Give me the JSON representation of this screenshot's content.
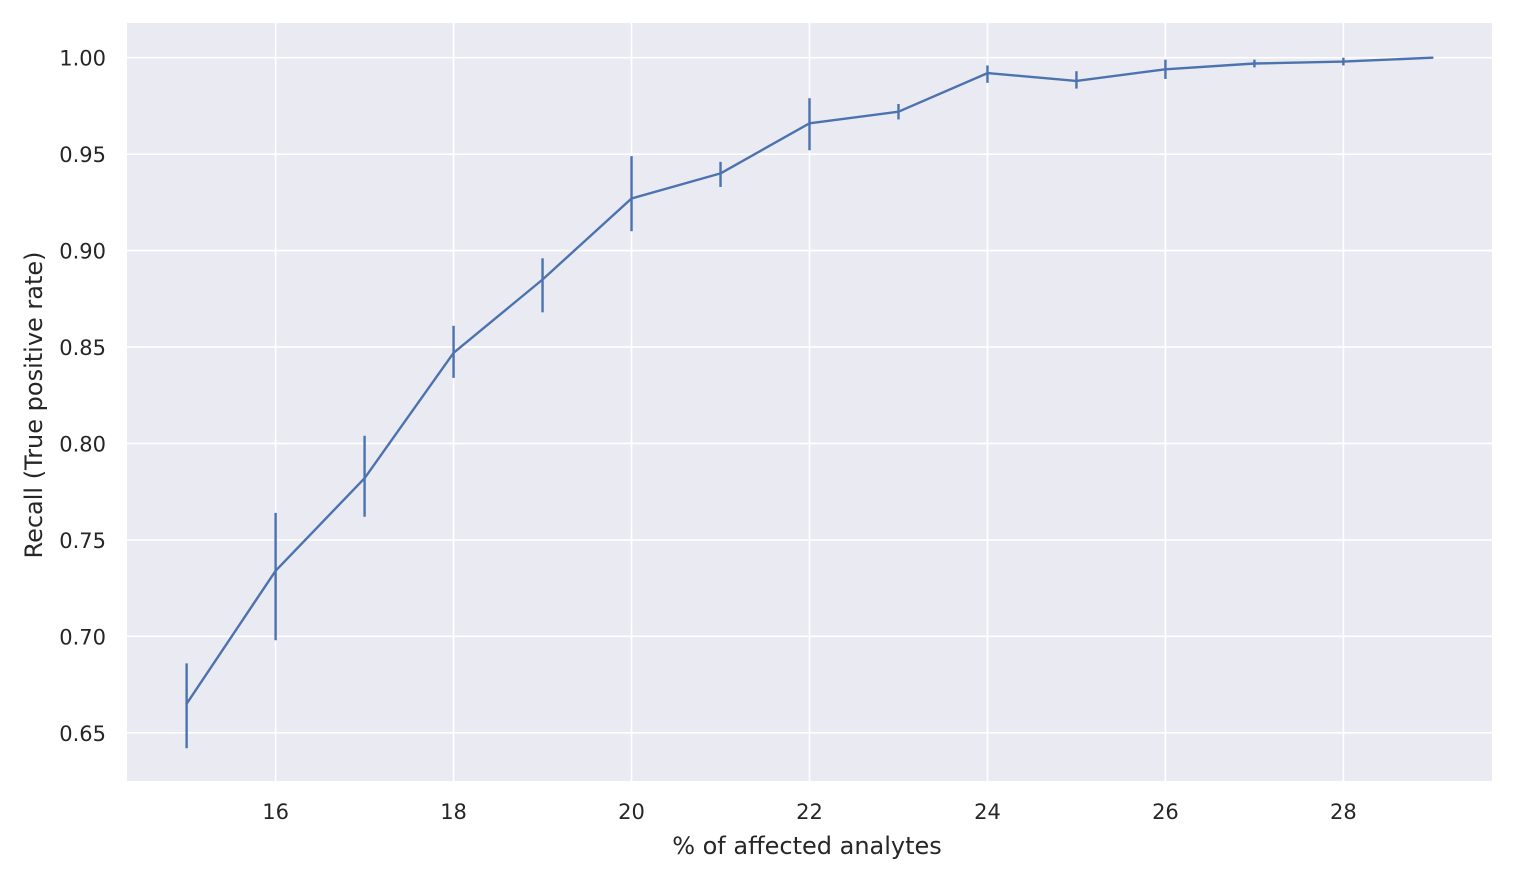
{
  "chart_data": {
    "type": "line",
    "title": "",
    "xlabel": "% of affected analytes",
    "ylabel": "Recall (True positive rate)",
    "xlim": [
      14.33,
      29.67
    ],
    "ylim": [
      0.625,
      1.018
    ],
    "x_ticks": [
      16,
      18,
      20,
      22,
      24,
      26,
      28
    ],
    "y_ticks": [
      0.65,
      0.7,
      0.75,
      0.8,
      0.85,
      0.9,
      0.95,
      1.0
    ],
    "x_tick_labels": [
      "16",
      "18",
      "20",
      "22",
      "24",
      "26",
      "28"
    ],
    "y_tick_labels": [
      "0.65",
      "0.70",
      "0.75",
      "0.80",
      "0.85",
      "0.90",
      "0.95",
      "1.00"
    ],
    "grid": true,
    "series": [
      {
        "color": "#4c72b0",
        "x": [
          15,
          16,
          17,
          18,
          19,
          20,
          21,
          22,
          23,
          24,
          25,
          26,
          27,
          28,
          29
        ],
        "y": [
          0.665,
          0.734,
          0.782,
          0.847,
          0.885,
          0.927,
          0.94,
          0.966,
          0.972,
          0.992,
          0.988,
          0.994,
          0.997,
          0.998,
          1.0
        ],
        "err_low": [
          0.642,
          0.698,
          0.762,
          0.834,
          0.868,
          0.91,
          0.933,
          0.952,
          0.968,
          0.987,
          0.984,
          0.989,
          0.995,
          0.996,
          1.0
        ],
        "err_high": [
          0.686,
          0.764,
          0.804,
          0.861,
          0.896,
          0.949,
          0.946,
          0.979,
          0.976,
          0.996,
          0.993,
          0.999,
          0.999,
          1.0,
          1.0
        ]
      }
    ]
  },
  "colors": {
    "plot_background": "#eaeaf2",
    "grid": "#ffffff",
    "line": "#4c72b0",
    "text": "#262626"
  }
}
